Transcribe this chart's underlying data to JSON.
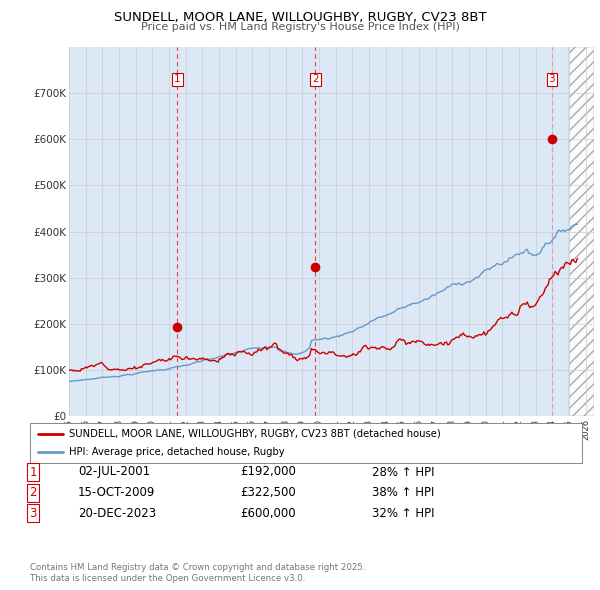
{
  "title": "SUNDELL, MOOR LANE, WILLOUGHBY, RUGBY, CV23 8BT",
  "subtitle": "Price paid vs. HM Land Registry's House Price Index (HPI)",
  "legend_line1": "SUNDELL, MOOR LANE, WILLOUGHBY, RUGBY, CV23 8BT (detached house)",
  "legend_line2": "HPI: Average price, detached house, Rugby",
  "sale1_date": "02-JUL-2001",
  "sale1_price": "£192,000",
  "sale1_hpi": "28% ↑ HPI",
  "sale1_year": 2001.5,
  "sale1_value": 192000,
  "sale2_date": "15-OCT-2009",
  "sale2_price": "£322,500",
  "sale2_hpi": "38% ↑ HPI",
  "sale2_year": 2009.79,
  "sale2_value": 322500,
  "sale3_date": "20-DEC-2023",
  "sale3_price": "£600,000",
  "sale3_hpi": "32% ↑ HPI",
  "sale3_year": 2023.97,
  "sale3_value": 600000,
  "red_color": "#cc0000",
  "blue_color": "#6699cc",
  "vline_color": "#dd4444",
  "grid_color": "#cccccc",
  "bg_color": "#dce8f5",
  "shade_color": "#dce8f5",
  "ylabel_color": "#333333",
  "ylim": [
    0,
    800000
  ],
  "xlim_start": 1995.0,
  "xlim_end": 2026.5,
  "hatch_start": 2025.0,
  "footnote": "Contains HM Land Registry data © Crown copyright and database right 2025.\nThis data is licensed under the Open Government Licence v3.0."
}
